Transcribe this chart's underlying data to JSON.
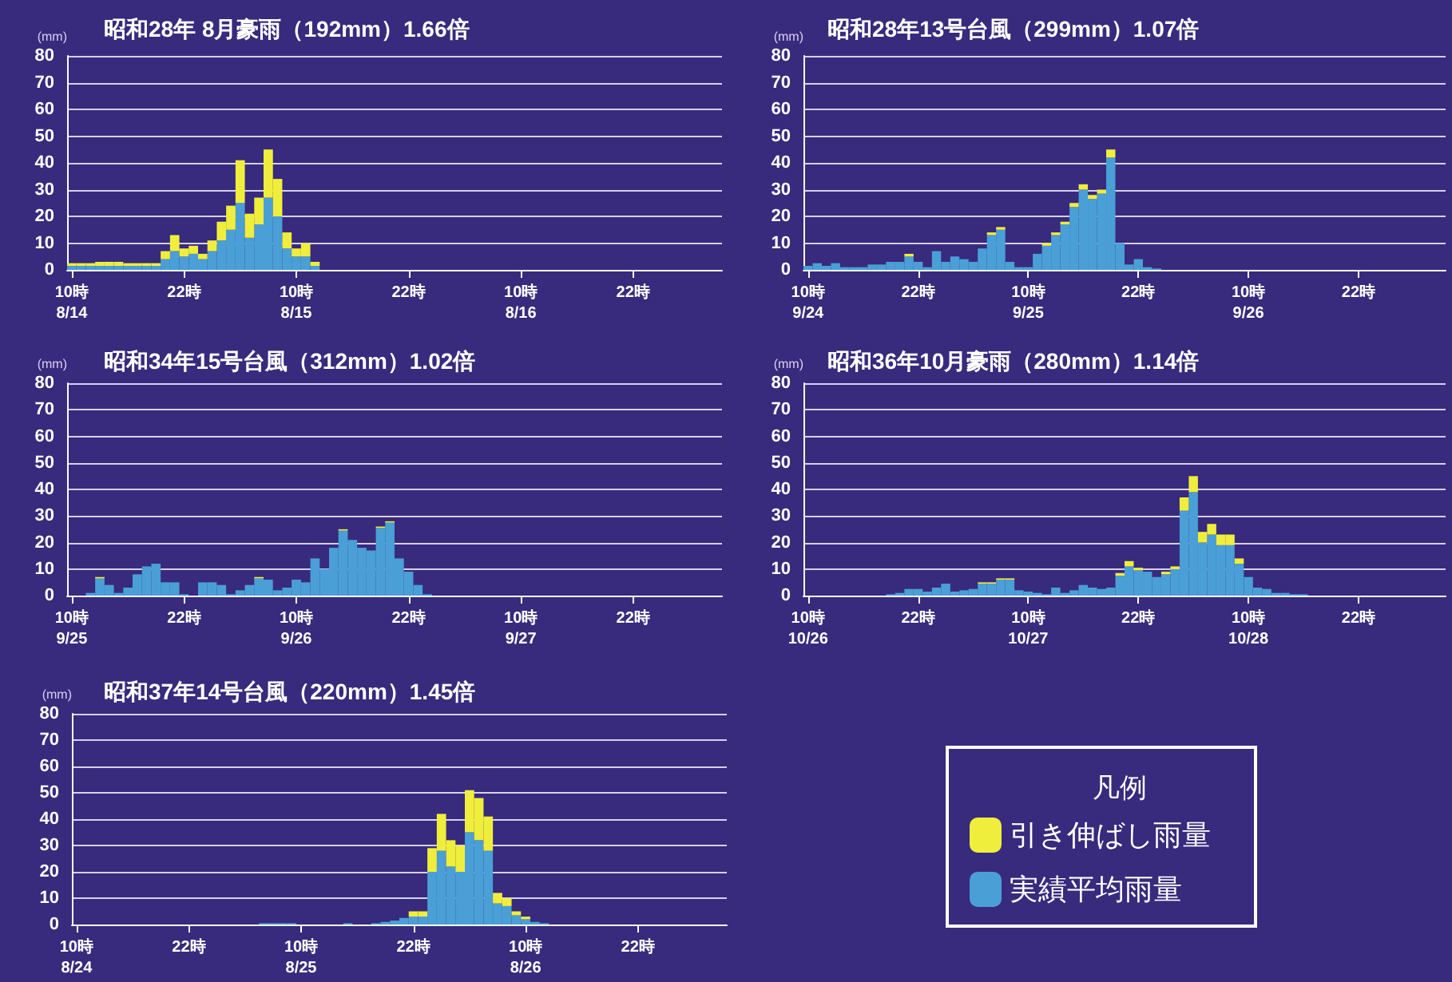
{
  "chart_data": [
    {
      "type": "bar",
      "title": "昭和28年 8月豪雨（192mm）1.66倍",
      "ylabel": "(mm)",
      "stacked": true,
      "ylim": [
        0,
        80
      ],
      "yticks": [
        0,
        10,
        20,
        30,
        40,
        50,
        60,
        70,
        80
      ],
      "grid": "y",
      "legend": false,
      "categories": [
        "10時\n8/14",
        null,
        null,
        null,
        null,
        null,
        null,
        null,
        null,
        null,
        null,
        null,
        "22時",
        null,
        null,
        null,
        null,
        null,
        null,
        null,
        null,
        null,
        null,
        null,
        "10時\n8/15",
        null,
        null,
        null,
        null,
        null,
        null,
        null,
        null,
        null,
        null,
        null,
        "22時",
        null,
        null,
        null,
        null,
        null,
        null,
        null,
        null,
        null,
        null,
        null,
        "10時\n8/16",
        null,
        null,
        null,
        null,
        null,
        null,
        null,
        null,
        null,
        null,
        null,
        "22時",
        null,
        null,
        null,
        null,
        null,
        null,
        null,
        null,
        null
      ],
      "series": [
        {
          "color": "#4a9fd6",
          "values": [
            1.5,
            1.5,
            1.5,
            1.5,
            1.5,
            1.5,
            1.5,
            1.5,
            1.5,
            1.5,
            4,
            7,
            5,
            6,
            4,
            7,
            11,
            15,
            25,
            12,
            17,
            27,
            20,
            8,
            5,
            5,
            1.5,
            null,
            null,
            null,
            null,
            null,
            null,
            null,
            null,
            null,
            null,
            null,
            null,
            null,
            null,
            null,
            null,
            null,
            null,
            null,
            null,
            null,
            null,
            null,
            null,
            null,
            null,
            null,
            null,
            null,
            null,
            null,
            null,
            null,
            null,
            null,
            null,
            null,
            null,
            null,
            null,
            null,
            null,
            null
          ]
        },
        {
          "color": "#f0ee3c",
          "values": [
            1,
            1,
            1,
            1.5,
            1.5,
            1.5,
            1,
            1,
            1,
            1,
            3,
            6,
            3,
            3,
            2,
            4,
            7,
            9,
            16,
            9,
            10,
            18,
            14,
            6,
            3,
            5,
            1.5,
            null,
            null,
            null,
            null,
            null,
            null,
            null,
            null,
            null,
            null,
            null,
            null,
            null,
            null,
            null,
            null,
            null,
            null,
            null,
            null,
            null,
            null,
            null,
            null,
            null,
            null,
            null,
            null,
            null,
            null,
            null,
            null,
            null,
            null,
            null,
            null,
            null,
            null,
            null,
            null,
            null,
            null,
            null
          ]
        }
      ]
    },
    {
      "type": "bar",
      "title": "昭和28年13号台風（299mm）1.07倍",
      "ylabel": "(mm)",
      "stacked": true,
      "ylim": [
        0,
        80
      ],
      "yticks": [
        0,
        10,
        20,
        30,
        40,
        50,
        60,
        70,
        80
      ],
      "grid": "y",
      "legend": false,
      "categories": [
        "10時\n9/24",
        null,
        null,
        null,
        null,
        null,
        null,
        null,
        null,
        null,
        null,
        null,
        "22時",
        null,
        null,
        null,
        null,
        null,
        null,
        null,
        null,
        null,
        null,
        null,
        "10時\n9/25",
        null,
        null,
        null,
        null,
        null,
        null,
        null,
        null,
        null,
        null,
        null,
        "22時",
        null,
        null,
        null,
        null,
        null,
        null,
        null,
        null,
        null,
        null,
        null,
        "10時\n9/26",
        null,
        null,
        null,
        null,
        null,
        null,
        null,
        null,
        null,
        null,
        null,
        "22時",
        null,
        null,
        null,
        null,
        null,
        null,
        null,
        null,
        null
      ],
      "series": [
        {
          "color": "#4a9fd6",
          "values": [
            1.5,
            2.5,
            1.5,
            2.5,
            1,
            1,
            1,
            2,
            2,
            3,
            3,
            5,
            3,
            1,
            7,
            3,
            5,
            4,
            3,
            8,
            13,
            15,
            3,
            1,
            1,
            6,
            9,
            13,
            17,
            23.5,
            30,
            26.5,
            28.5,
            42,
            10,
            2,
            4,
            1,
            0.5,
            null,
            null,
            null,
            null,
            null,
            null,
            null,
            null,
            null,
            null,
            null,
            null,
            null,
            null,
            null,
            null,
            null,
            null,
            null,
            null,
            null,
            null,
            null,
            null,
            null,
            null,
            null,
            null,
            null,
            null,
            null
          ]
        },
        {
          "color": "#f0ee3c",
          "values": [
            null,
            null,
            null,
            null,
            null,
            null,
            null,
            null,
            null,
            null,
            null,
            1,
            null,
            null,
            null,
            null,
            null,
            null,
            null,
            null,
            1,
            1,
            null,
            null,
            null,
            null,
            1,
            1,
            1,
            1.5,
            2,
            1.5,
            1.5,
            3,
            null,
            null,
            null,
            null,
            null,
            null,
            null,
            null,
            null,
            null,
            null,
            null,
            null,
            null,
            null,
            null,
            null,
            null,
            null,
            null,
            null,
            null,
            null,
            null,
            null,
            null,
            null,
            null,
            null,
            null,
            null,
            null,
            null,
            null,
            null,
            null
          ]
        }
      ]
    },
    {
      "type": "bar",
      "title": "昭和34年15号台風（312mm）1.02倍",
      "ylabel": "(mm)",
      "stacked": true,
      "ylim": [
        0,
        80
      ],
      "yticks": [
        0,
        10,
        20,
        30,
        40,
        50,
        60,
        70,
        80
      ],
      "grid": "y",
      "legend": false,
      "categories": [
        "10時\n9/25",
        null,
        null,
        null,
        null,
        null,
        null,
        null,
        null,
        null,
        null,
        null,
        "22時",
        null,
        null,
        null,
        null,
        null,
        null,
        null,
        null,
        null,
        null,
        null,
        "10時\n9/26",
        null,
        null,
        null,
        null,
        null,
        null,
        null,
        null,
        null,
        null,
        null,
        "22時",
        null,
        null,
        null,
        null,
        null,
        null,
        null,
        null,
        null,
        null,
        null,
        "10時\n9/27",
        null,
        null,
        null,
        null,
        null,
        null,
        null,
        null,
        null,
        null,
        null,
        "22時",
        null,
        null,
        null,
        null,
        null,
        null,
        null,
        null,
        null
      ],
      "series": [
        {
          "color": "#4a9fd6",
          "values": [
            null,
            null,
            1,
            6.5,
            4,
            1,
            3,
            8,
            11,
            12,
            5,
            5,
            0.5,
            null,
            5,
            5,
            4,
            0.5,
            2,
            4,
            6.5,
            6,
            2,
            3,
            6,
            5,
            14,
            10,
            18,
            24.5,
            21,
            18,
            17,
            25.5,
            27.5,
            14,
            9,
            4,
            0.5,
            null,
            null,
            null,
            null,
            null,
            null,
            null,
            null,
            null,
            null,
            null,
            null,
            null,
            null,
            null,
            null,
            null,
            null,
            null,
            null,
            null,
            null,
            null,
            null,
            null,
            null,
            null,
            null,
            null,
            null,
            null
          ]
        },
        {
          "color": "#f0ee3c",
          "values": [
            null,
            null,
            null,
            0.5,
            null,
            null,
            null,
            null,
            null,
            null,
            null,
            null,
            null,
            null,
            null,
            null,
            null,
            null,
            null,
            null,
            0.5,
            null,
            null,
            null,
            null,
            null,
            null,
            null,
            null,
            0.5,
            null,
            null,
            null,
            0.5,
            0.5,
            null,
            null,
            null,
            null,
            null,
            null,
            null,
            null,
            null,
            null,
            null,
            null,
            null,
            null,
            null,
            null,
            null,
            null,
            null,
            null,
            null,
            null,
            null,
            null,
            null,
            null,
            null,
            null,
            null,
            null,
            null,
            null,
            null,
            null,
            null
          ]
        }
      ]
    },
    {
      "type": "bar",
      "title": "昭和36年10月豪雨（280mm）1.14倍",
      "ylabel": "(mm)",
      "stacked": true,
      "ylim": [
        0,
        80
      ],
      "yticks": [
        0,
        10,
        20,
        30,
        40,
        50,
        60,
        70,
        80
      ],
      "grid": "y",
      "legend": false,
      "categories": [
        "10時\n10/26",
        null,
        null,
        null,
        null,
        null,
        null,
        null,
        null,
        null,
        null,
        null,
        "22時",
        null,
        null,
        null,
        null,
        null,
        null,
        null,
        null,
        null,
        null,
        null,
        "10時\n10/27",
        null,
        null,
        null,
        null,
        null,
        null,
        null,
        null,
        null,
        null,
        null,
        "22時",
        null,
        null,
        null,
        null,
        null,
        null,
        null,
        null,
        null,
        null,
        null,
        "10時\n10/28",
        null,
        null,
        null,
        null,
        null,
        null,
        null,
        null,
        null,
        null,
        null,
        "22時",
        null,
        null,
        null,
        null,
        null,
        null,
        null,
        null,
        null
      ],
      "series": [
        {
          "color": "#4a9fd6",
          "values": [
            null,
            null,
            null,
            null,
            null,
            null,
            null,
            null,
            null,
            0.5,
            1,
            2.5,
            2.5,
            1.5,
            3,
            4.5,
            1.5,
            2,
            2.5,
            4.5,
            4.5,
            6,
            6,
            2,
            1.5,
            1,
            0.5,
            3,
            1,
            2,
            4,
            3,
            2.5,
            3,
            7.5,
            11,
            9.5,
            9,
            7,
            8,
            10,
            32,
            39,
            20,
            23,
            19,
            19,
            12,
            7,
            3,
            2.5,
            1,
            1,
            0.5,
            0.5,
            null,
            null,
            null,
            null,
            null,
            null,
            null,
            null,
            null,
            null,
            null,
            null,
            null,
            null,
            null
          ]
        },
        {
          "color": "#f0ee3c",
          "values": [
            null,
            null,
            null,
            null,
            null,
            null,
            null,
            null,
            null,
            null,
            null,
            null,
            null,
            null,
            null,
            null,
            null,
            null,
            null,
            0.5,
            0.5,
            0.5,
            0.5,
            null,
            null,
            null,
            null,
            null,
            null,
            null,
            null,
            null,
            null,
            null,
            1,
            2,
            1,
            null,
            null,
            1,
            1,
            5,
            6,
            4,
            4,
            4,
            4,
            2,
            null,
            null,
            null,
            null,
            null,
            null,
            null,
            null,
            null,
            null,
            null,
            null,
            null,
            null,
            null,
            null,
            null,
            null,
            null,
            null,
            null,
            null
          ]
        }
      ]
    },
    {
      "type": "bar",
      "title": "昭和37年14号台風（220mm）1.45倍",
      "ylabel": "(mm)",
      "stacked": true,
      "ylim": [
        0,
        80
      ],
      "yticks": [
        0,
        10,
        20,
        30,
        40,
        50,
        60,
        70,
        80
      ],
      "grid": "y",
      "legend": "right",
      "legend_title": "凡例",
      "categories": [
        "10時\n8/24",
        null,
        null,
        null,
        null,
        null,
        null,
        null,
        null,
        null,
        null,
        null,
        "22時",
        null,
        null,
        null,
        null,
        null,
        null,
        null,
        null,
        null,
        null,
        null,
        "10時\n8/25",
        null,
        null,
        null,
        null,
        null,
        null,
        null,
        null,
        null,
        null,
        null,
        "22時",
        null,
        null,
        null,
        null,
        null,
        null,
        null,
        null,
        null,
        null,
        null,
        "10時\n8/26",
        null,
        null,
        null,
        null,
        null,
        null,
        null,
        null,
        null,
        null,
        null,
        "22時",
        null,
        null,
        null,
        null,
        null,
        null,
        null,
        null,
        null
      ],
      "series": [
        {
          "name": "実績平均雨量",
          "color": "#4a9fd6",
          "values": [
            null,
            null,
            null,
            null,
            null,
            null,
            null,
            null,
            null,
            null,
            null,
            null,
            null,
            null,
            null,
            null,
            null,
            null,
            null,
            null,
            0.5,
            0.5,
            0.5,
            0.5,
            null,
            null,
            null,
            null,
            null,
            0.5,
            null,
            null,
            0.5,
            1,
            1.5,
            2.5,
            3,
            3,
            20,
            28,
            22,
            20,
            35,
            32,
            28,
            8,
            7,
            3.5,
            2,
            1,
            0.5,
            null,
            null,
            null,
            null,
            null,
            null,
            null,
            null,
            null,
            null,
            null,
            null,
            null,
            null,
            null,
            null,
            null,
            null,
            null
          ]
        },
        {
          "name": "引き伸ばし雨量",
          "color": "#f0ee3c",
          "values": [
            null,
            null,
            null,
            null,
            null,
            null,
            null,
            null,
            null,
            null,
            null,
            null,
            null,
            null,
            null,
            null,
            null,
            null,
            null,
            null,
            null,
            null,
            null,
            null,
            null,
            null,
            null,
            null,
            null,
            null,
            null,
            null,
            null,
            null,
            null,
            null,
            2,
            2,
            9,
            14,
            10,
            10,
            16,
            16,
            13,
            4,
            3,
            1.5,
            1,
            null,
            null,
            null,
            null,
            null,
            null,
            null,
            null,
            null,
            null,
            null,
            null,
            null,
            null,
            null,
            null,
            null,
            null,
            null,
            null,
            null
          ]
        }
      ]
    }
  ]
}
